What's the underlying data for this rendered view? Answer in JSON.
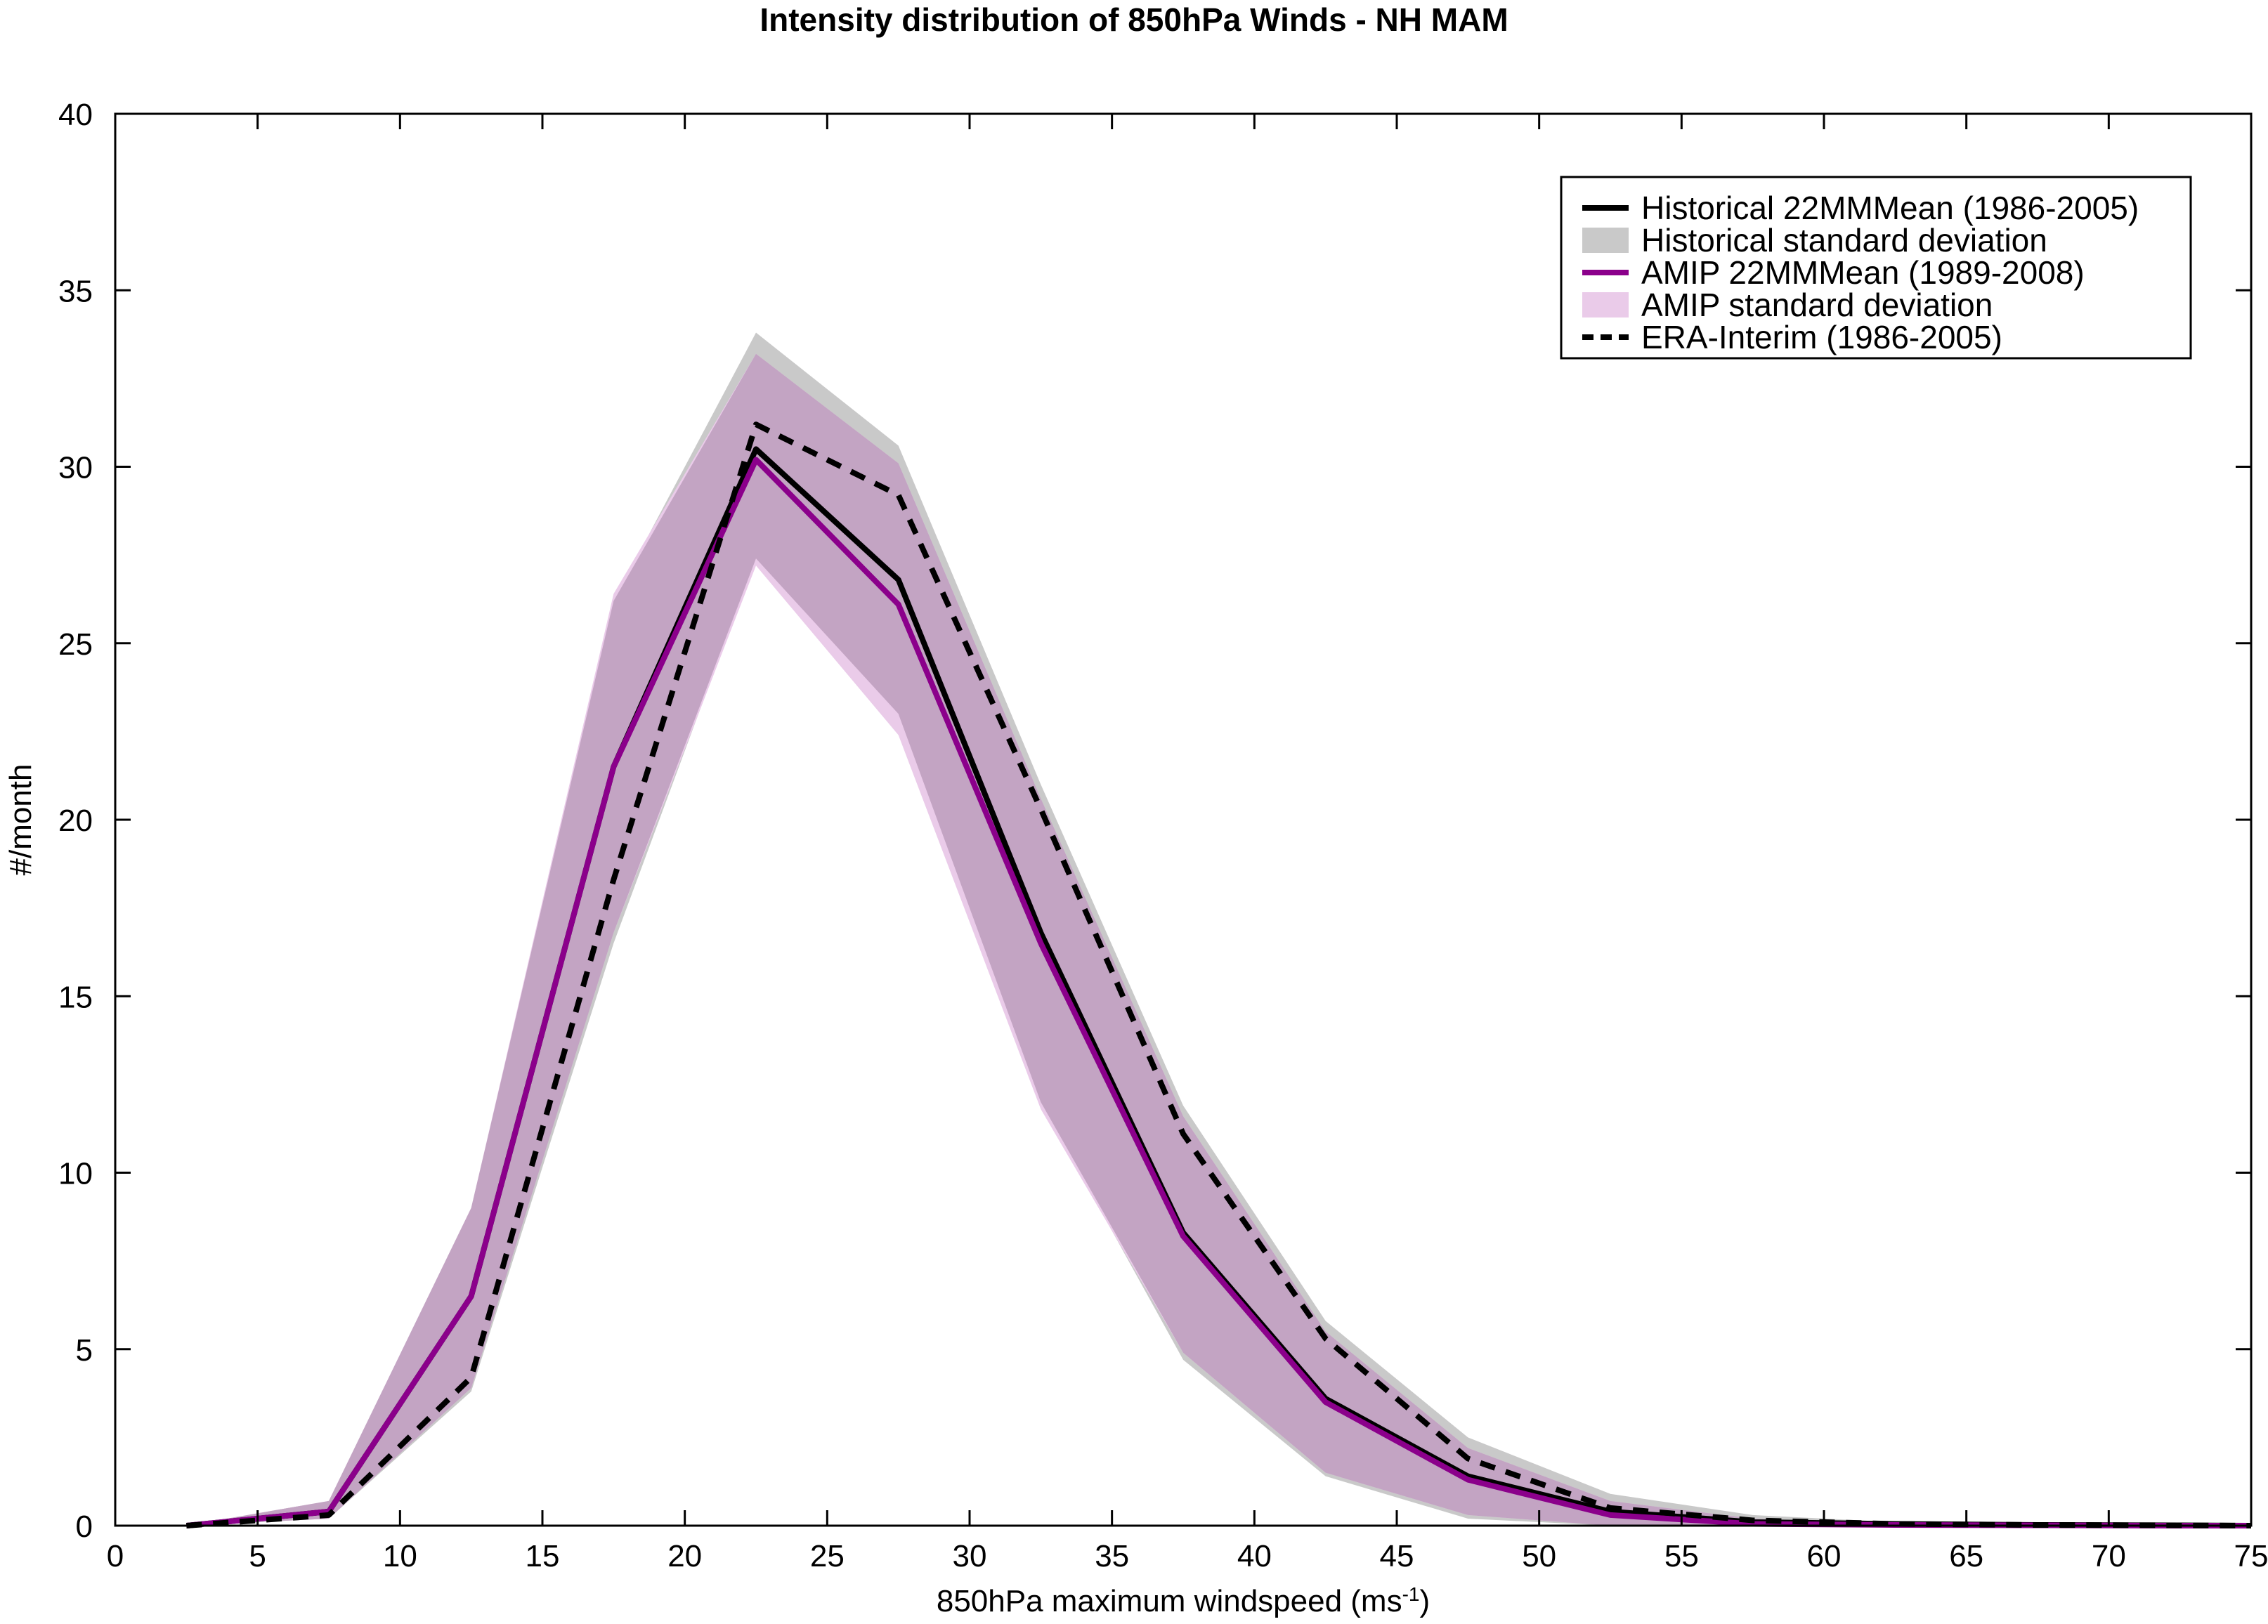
{
  "chart_data": {
    "type": "line",
    "title": "Intensity distribution of 850hPa Winds - NH MAM",
    "xlabel": "850hPa maximum windspeed (ms",
    "xlabel_sup": "-1",
    "xlabel_end": ")",
    "ylabel": "#/month",
    "xlim": [
      0,
      75
    ],
    "ylim": [
      0,
      40
    ],
    "xticks": [
      0,
      5,
      10,
      15,
      20,
      25,
      30,
      35,
      40,
      45,
      50,
      55,
      60,
      65,
      70,
      75
    ],
    "yticks": [
      0,
      5,
      10,
      15,
      20,
      25,
      30,
      35,
      40
    ],
    "grid": false,
    "legend_position": "top-right",
    "x": [
      2.5,
      7.5,
      12.5,
      17.5,
      22.5,
      27.5,
      32.5,
      37.5,
      42.5,
      47.5,
      52.5,
      57.5,
      62.5,
      67.5,
      72.5,
      75
    ],
    "bands": [
      {
        "name": "Historical standard deviation",
        "color": "#c9c9c9",
        "upper": [
          0.0,
          0.7,
          9.0,
          26.2,
          33.8,
          30.6,
          21.0,
          11.9,
          5.8,
          2.5,
          0.9,
          0.3,
          0.1,
          0.05,
          0.0,
          0.0
        ],
        "lower": [
          0.0,
          0.2,
          3.8,
          16.5,
          27.4,
          23.0,
          12.0,
          4.7,
          1.4,
          0.2,
          0.0,
          0.0,
          0.0,
          0.0,
          0.0,
          0.0
        ]
      },
      {
        "name": "AMIP standard deviation",
        "color": "#eacbe9",
        "upper": [
          0.0,
          0.7,
          9.0,
          26.4,
          33.2,
          30.1,
          20.6,
          11.6,
          5.5,
          2.2,
          0.7,
          0.2,
          0.05,
          0.0,
          0.0,
          0.0
        ],
        "lower": [
          0.0,
          0.2,
          3.9,
          16.8,
          27.2,
          22.4,
          11.8,
          4.9,
          1.5,
          0.3,
          0.0,
          0.0,
          0.0,
          0.0,
          0.0,
          0.0
        ]
      }
    ],
    "overlap_color": "#c3a4c3",
    "series": [
      {
        "name": "Historical 22MMMean (1986-2005)",
        "color": "#000000",
        "dash": "solid",
        "values": [
          0.0,
          0.4,
          6.5,
          21.5,
          30.5,
          26.8,
          16.8,
          8.3,
          3.6,
          1.4,
          0.4,
          0.1,
          0.05,
          0.02,
          0.01,
          0.0
        ]
      },
      {
        "name": "AMIP 22MMMean (1989-2008)",
        "color": "#8b008b",
        "dash": "solid",
        "values": [
          0.0,
          0.4,
          6.5,
          21.5,
          30.2,
          26.1,
          16.5,
          8.2,
          3.5,
          1.3,
          0.3,
          0.05,
          0.02,
          0.01,
          0.0,
          0.0
        ]
      },
      {
        "name": "ERA-Interim (1986-2005)",
        "color": "#000000",
        "dash": "dashed",
        "values": [
          0.0,
          0.3,
          4.2,
          18.3,
          31.2,
          29.2,
          20.3,
          11.1,
          5.3,
          1.9,
          0.5,
          0.15,
          0.05,
          0.02,
          0.01,
          0.0
        ]
      }
    ],
    "legend": [
      {
        "label": "Historical 22MMMean (1986-2005)",
        "kind": "line",
        "color": "#000000",
        "dash": "solid"
      },
      {
        "label": "Historical standard deviation",
        "kind": "patch",
        "color": "#c9c9c9"
      },
      {
        "label": "AMIP 22MMMean (1989-2008)",
        "kind": "line",
        "color": "#8b008b",
        "dash": "solid"
      },
      {
        "label": "AMIP standard deviation",
        "kind": "patch",
        "color": "#eacbe9"
      },
      {
        "label": "ERA-Interim (1986-2005)",
        "kind": "line",
        "color": "#000000",
        "dash": "dashed"
      }
    ]
  }
}
